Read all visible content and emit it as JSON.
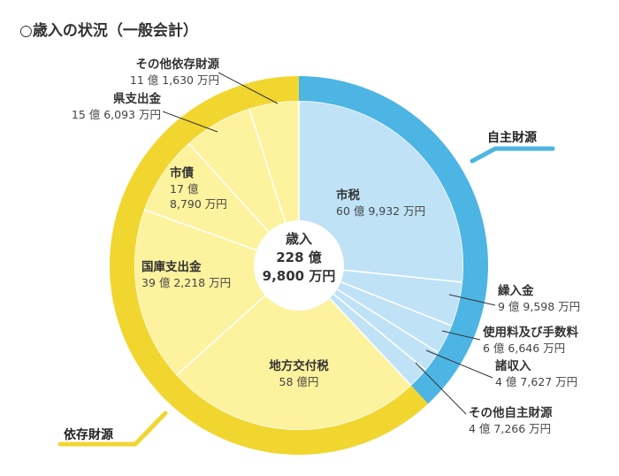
{
  "chart_data": {
    "type": "pie",
    "title": "○歳入の状況（一般会計）",
    "unit": "億円",
    "center": {
      "line1": "歳入",
      "line2": "228 億",
      "line3": "9,800 万円"
    },
    "slices": [
      {
        "name": "市税",
        "value_text": "60 億 9,932 万円",
        "value": 60.9932,
        "group": "own"
      },
      {
        "name": "繰入金",
        "value_text": "9 億 9,598 万円",
        "value": 9.9598,
        "group": "own"
      },
      {
        "name": "使用料及び手数料",
        "value_text": "6 億 6,646 万円",
        "value": 6.6646,
        "group": "own"
      },
      {
        "name": "諸収入",
        "value_text": "4 億 7,627 万円",
        "value": 4.7627,
        "group": "own"
      },
      {
        "name": "その他自主財源",
        "value_text": "4 億 7,266 万円",
        "value": 4.7266,
        "group": "own"
      },
      {
        "name": "地方交付税",
        "value_text": "58 億円",
        "value": 58.0,
        "group": "dep"
      },
      {
        "name": "国庫支出金",
        "value_text": "39 億 2,218 万円",
        "value": 39.2218,
        "group": "dep"
      },
      {
        "name": "市債",
        "value_text": "17 億 8,790 万円",
        "value": 17.879,
        "group": "dep"
      },
      {
        "name": "県支出金",
        "value_text": "15 億 6,093 万円",
        "value": 15.6093,
        "group": "dep"
      },
      {
        "name": "その他依存財源",
        "value_text": "11 億 1,630 万円",
        "value": 11.163,
        "group": "dep"
      }
    ],
    "groups": [
      {
        "id": "own",
        "label": "自主財源",
        "color": "#4db5e3",
        "slice_color": "#bfe2f6"
      },
      {
        "id": "dep",
        "label": "依存財源",
        "color": "#f1d630",
        "slice_color": "#fdf29d"
      }
    ],
    "legend": "none"
  }
}
